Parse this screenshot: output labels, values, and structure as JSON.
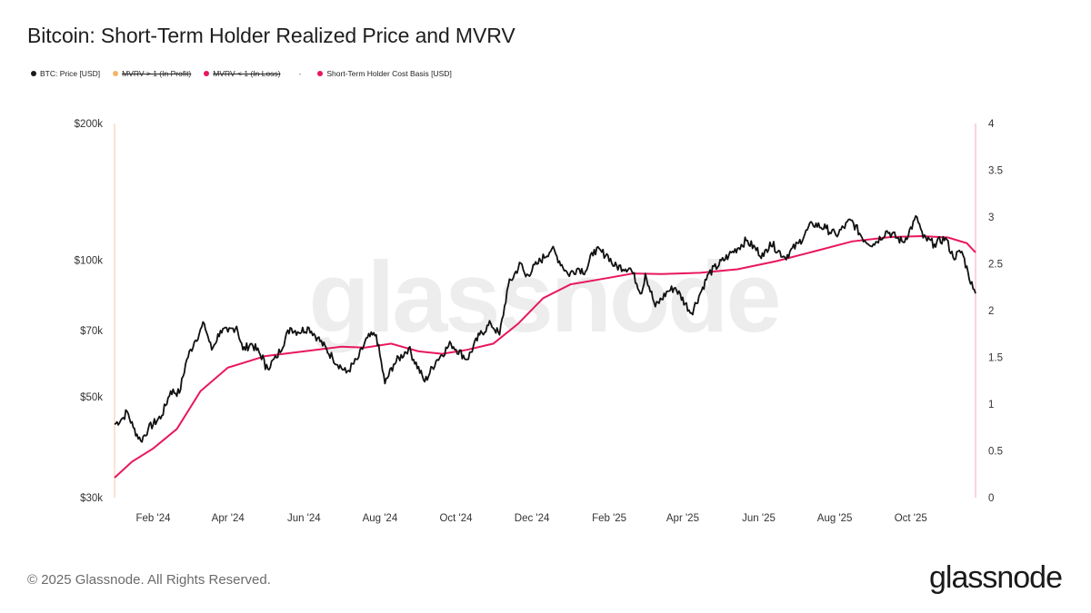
{
  "title": "Bitcoin: Short-Term Holder Realized Price and MVRV",
  "legend": [
    {
      "label": "BTC: Price [USD]",
      "color": "#1a1a1a",
      "state": "on"
    },
    {
      "label": "MVRV > 1 (In Profit)",
      "color": "#f2b56b",
      "state": "off"
    },
    {
      "label": "MVRV < 1 (In Loss)",
      "color": "#e8175d",
      "state": "off"
    },
    {
      "label": "Short-Term Holder Cost Basis [USD]",
      "color": "#e8175d",
      "state": "on"
    }
  ],
  "legend_separator": "-",
  "watermark": "glassnode",
  "footer": {
    "copyright": "© 2025 Glassnode. All Rights Reserved.",
    "logo": "glassnode"
  },
  "colors": {
    "price": "#111111",
    "cost_basis": "#e8175d",
    "left_axis_line": "#f6c9a8",
    "right_axis_line": "#f3a7c4"
  },
  "chart_data": {
    "type": "line",
    "title": "Bitcoin: Short-Term Holder Realized Price and MVRV",
    "y_left": {
      "scale": "log",
      "ylim": [
        30000,
        200000
      ],
      "ticks": [
        {
          "value": 200000,
          "label": "$200k"
        },
        {
          "value": 100000,
          "label": "$100k"
        },
        {
          "value": 70000,
          "label": "$70k"
        },
        {
          "value": 50000,
          "label": "$50k"
        },
        {
          "value": 30000,
          "label": "$30k"
        }
      ]
    },
    "y_right": {
      "scale": "linear",
      "ylim": [
        0,
        4
      ],
      "ticks": [
        "4",
        "3.5",
        "3",
        "2.5",
        "2",
        "1.5",
        "1",
        "0.5",
        "0"
      ]
    },
    "x_range": [
      "2024-01-01",
      "2025-11-22"
    ],
    "x_ticks": [
      {
        "date": "2024-02-01",
        "label": "Feb '24"
      },
      {
        "date": "2024-04-01",
        "label": "Apr '24"
      },
      {
        "date": "2024-06-01",
        "label": "Jun '24"
      },
      {
        "date": "2024-08-01",
        "label": "Aug '24"
      },
      {
        "date": "2024-10-01",
        "label": "Oct '24"
      },
      {
        "date": "2024-12-01",
        "label": "Dec '24"
      },
      {
        "date": "2025-02-01",
        "label": "Feb '25"
      },
      {
        "date": "2025-04-01",
        "label": "Apr '25"
      },
      {
        "date": "2025-06-01",
        "label": "Jun '25"
      },
      {
        "date": "2025-08-01",
        "label": "Aug '25"
      },
      {
        "date": "2025-10-01",
        "label": "Oct '25"
      }
    ],
    "series": [
      {
        "name": "BTC: Price [USD]",
        "axis": "left",
        "points": [
          [
            "2024-01-01",
            43500
          ],
          [
            "2024-01-08",
            45000
          ],
          [
            "2024-01-11",
            46500
          ],
          [
            "2024-01-16",
            42800
          ],
          [
            "2024-01-22",
            40000
          ],
          [
            "2024-01-28",
            42500
          ],
          [
            "2024-02-08",
            45500
          ],
          [
            "2024-02-15",
            51500
          ],
          [
            "2024-02-22",
            51000
          ],
          [
            "2024-02-28",
            60500
          ],
          [
            "2024-03-05",
            66000
          ],
          [
            "2024-03-13",
            72500
          ],
          [
            "2024-03-19",
            63500
          ],
          [
            "2024-03-26",
            70000
          ],
          [
            "2024-04-01",
            69500
          ],
          [
            "2024-04-08",
            71500
          ],
          [
            "2024-04-13",
            63500
          ],
          [
            "2024-04-20",
            65500
          ],
          [
            "2024-04-30",
            60500
          ],
          [
            "2024-05-01",
            57500
          ],
          [
            "2024-05-10",
            61000
          ],
          [
            "2024-05-21",
            71000
          ],
          [
            "2024-05-27",
            69500
          ],
          [
            "2024-06-05",
            71000
          ],
          [
            "2024-06-12",
            67500
          ],
          [
            "2024-06-24",
            61000
          ],
          [
            "2024-07-05",
            56500
          ],
          [
            "2024-07-14",
            60500
          ],
          [
            "2024-07-22",
            67500
          ],
          [
            "2024-07-29",
            68500
          ],
          [
            "2024-08-05",
            53500
          ],
          [
            "2024-08-12",
            59000
          ],
          [
            "2024-08-24",
            64000
          ],
          [
            "2024-09-06",
            54000
          ],
          [
            "2024-09-15",
            60000
          ],
          [
            "2024-09-27",
            65500
          ],
          [
            "2024-10-10",
            60500
          ],
          [
            "2024-10-20",
            68500
          ],
          [
            "2024-10-29",
            72500
          ],
          [
            "2024-11-05",
            68500
          ],
          [
            "2024-11-12",
            88000
          ],
          [
            "2024-11-22",
            98500
          ],
          [
            "2024-11-26",
            92000
          ],
          [
            "2024-12-05",
            98000
          ],
          [
            "2024-12-17",
            106000
          ],
          [
            "2024-12-30",
            93000
          ],
          [
            "2025-01-07",
            96000
          ],
          [
            "2025-01-13",
            94500
          ],
          [
            "2025-01-20",
            105500
          ],
          [
            "2025-01-31",
            102500
          ],
          [
            "2025-02-05",
            97000
          ],
          [
            "2025-02-18",
            96000
          ],
          [
            "2025-02-27",
            84500
          ],
          [
            "2025-03-02",
            93500
          ],
          [
            "2025-03-10",
            79000
          ],
          [
            "2025-03-20",
            85500
          ],
          [
            "2025-03-26",
            87000
          ],
          [
            "2025-04-08",
            76500
          ],
          [
            "2025-04-15",
            84500
          ],
          [
            "2025-04-22",
            93500
          ],
          [
            "2025-05-08",
            102500
          ],
          [
            "2025-05-22",
            110500
          ],
          [
            "2025-06-05",
            102000
          ],
          [
            "2025-06-10",
            109500
          ],
          [
            "2025-06-22",
            101500
          ],
          [
            "2025-07-03",
            109000
          ],
          [
            "2025-07-14",
            120500
          ],
          [
            "2025-07-25",
            117500
          ],
          [
            "2025-08-02",
            113500
          ],
          [
            "2025-08-14",
            122500
          ],
          [
            "2025-08-25",
            110500
          ],
          [
            "2025-09-01",
            108500
          ],
          [
            "2025-09-12",
            116000
          ],
          [
            "2025-09-25",
            109500
          ],
          [
            "2025-10-06",
            124500
          ],
          [
            "2025-10-11",
            112000
          ],
          [
            "2025-10-20",
            108500
          ],
          [
            "2025-10-29",
            112000
          ],
          [
            "2025-11-04",
            101500
          ],
          [
            "2025-11-11",
            104500
          ],
          [
            "2025-11-16",
            94000
          ],
          [
            "2025-11-20",
            86500
          ],
          [
            "2025-11-22",
            84500
          ]
        ]
      },
      {
        "name": "Short-Term Holder Cost Basis [USD]",
        "axis": "left",
        "points": [
          [
            "2024-01-01",
            33200
          ],
          [
            "2024-01-15",
            36000
          ],
          [
            "2024-02-01",
            38500
          ],
          [
            "2024-02-20",
            42500
          ],
          [
            "2024-03-10",
            51500
          ],
          [
            "2024-04-01",
            58000
          ],
          [
            "2024-05-01",
            61500
          ],
          [
            "2024-06-01",
            63000
          ],
          [
            "2024-07-01",
            64500
          ],
          [
            "2024-07-20",
            64200
          ],
          [
            "2024-08-10",
            65500
          ],
          [
            "2024-09-01",
            63000
          ],
          [
            "2024-09-20",
            62200
          ],
          [
            "2024-10-10",
            63500
          ],
          [
            "2024-10-31",
            65500
          ],
          [
            "2024-11-20",
            72500
          ],
          [
            "2024-12-10",
            82500
          ],
          [
            "2025-01-01",
            88500
          ],
          [
            "2025-02-01",
            91500
          ],
          [
            "2025-02-20",
            93500
          ],
          [
            "2025-03-15",
            93200
          ],
          [
            "2025-04-15",
            93800
          ],
          [
            "2025-05-15",
            95500
          ],
          [
            "2025-06-15",
            99500
          ],
          [
            "2025-07-15",
            104500
          ],
          [
            "2025-08-15",
            110000
          ],
          [
            "2025-09-15",
            112500
          ],
          [
            "2025-10-10",
            113000
          ],
          [
            "2025-10-31",
            112200
          ],
          [
            "2025-11-15",
            109000
          ],
          [
            "2025-11-22",
            104000
          ]
        ]
      }
    ]
  }
}
